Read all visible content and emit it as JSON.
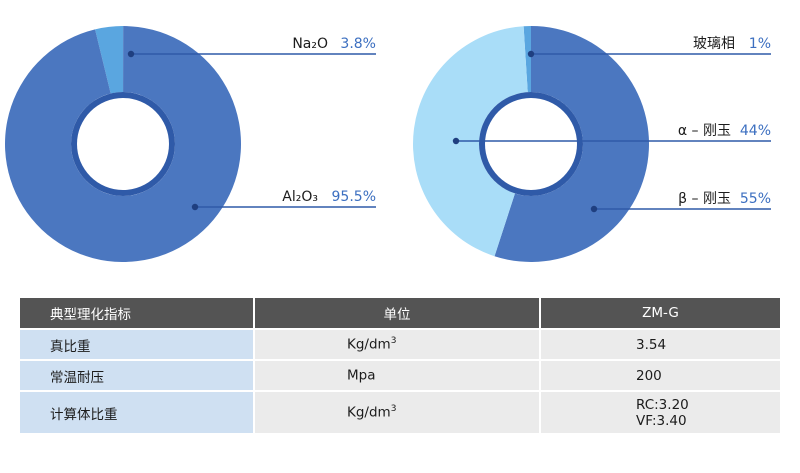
{
  "chart_data": [
    {
      "type": "pie",
      "variant": "donut",
      "slices": [
        {
          "label": "Na₂O",
          "value": 3.8,
          "display": "3.8%",
          "color": "#5aa6e0"
        },
        {
          "label": "Al₂O₃",
          "value": 95.5,
          "display": "95.5%",
          "color": "#4b77c0"
        }
      ]
    },
    {
      "type": "pie",
      "variant": "donut",
      "slices": [
        {
          "label": "玻璃相",
          "value": 1,
          "display": "1%",
          "color": "#5aa6e0"
        },
        {
          "label": "α – 刚玉",
          "value": 44,
          "display": "44%",
          "color": "#a9ddf8"
        },
        {
          "label": "β – 刚玉",
          "value": 55,
          "display": "55%",
          "color": "#4b77c0"
        }
      ]
    }
  ],
  "table": {
    "headers": [
      "典型理化指标",
      "单位",
      "ZM-G"
    ],
    "rows": [
      {
        "name": "真比重",
        "unit": "Kg/dm",
        "unit_sup": "3",
        "value": "3.54",
        "value2": ""
      },
      {
        "name": "常温耐压",
        "unit": "Mpa",
        "unit_sup": "",
        "value": "200",
        "value2": ""
      },
      {
        "name": "计算体比重",
        "unit": "Kg/dm",
        "unit_sup": "3",
        "value": "RC:3.20",
        "value2": "VF:3.40"
      }
    ]
  },
  "colors": {
    "dark_blue": "#4b77c0",
    "ring_blue": "#2f5aa8",
    "mid_blue": "#5aa6e0",
    "light_blue": "#a9ddf8",
    "header_gray": "#545454"
  }
}
